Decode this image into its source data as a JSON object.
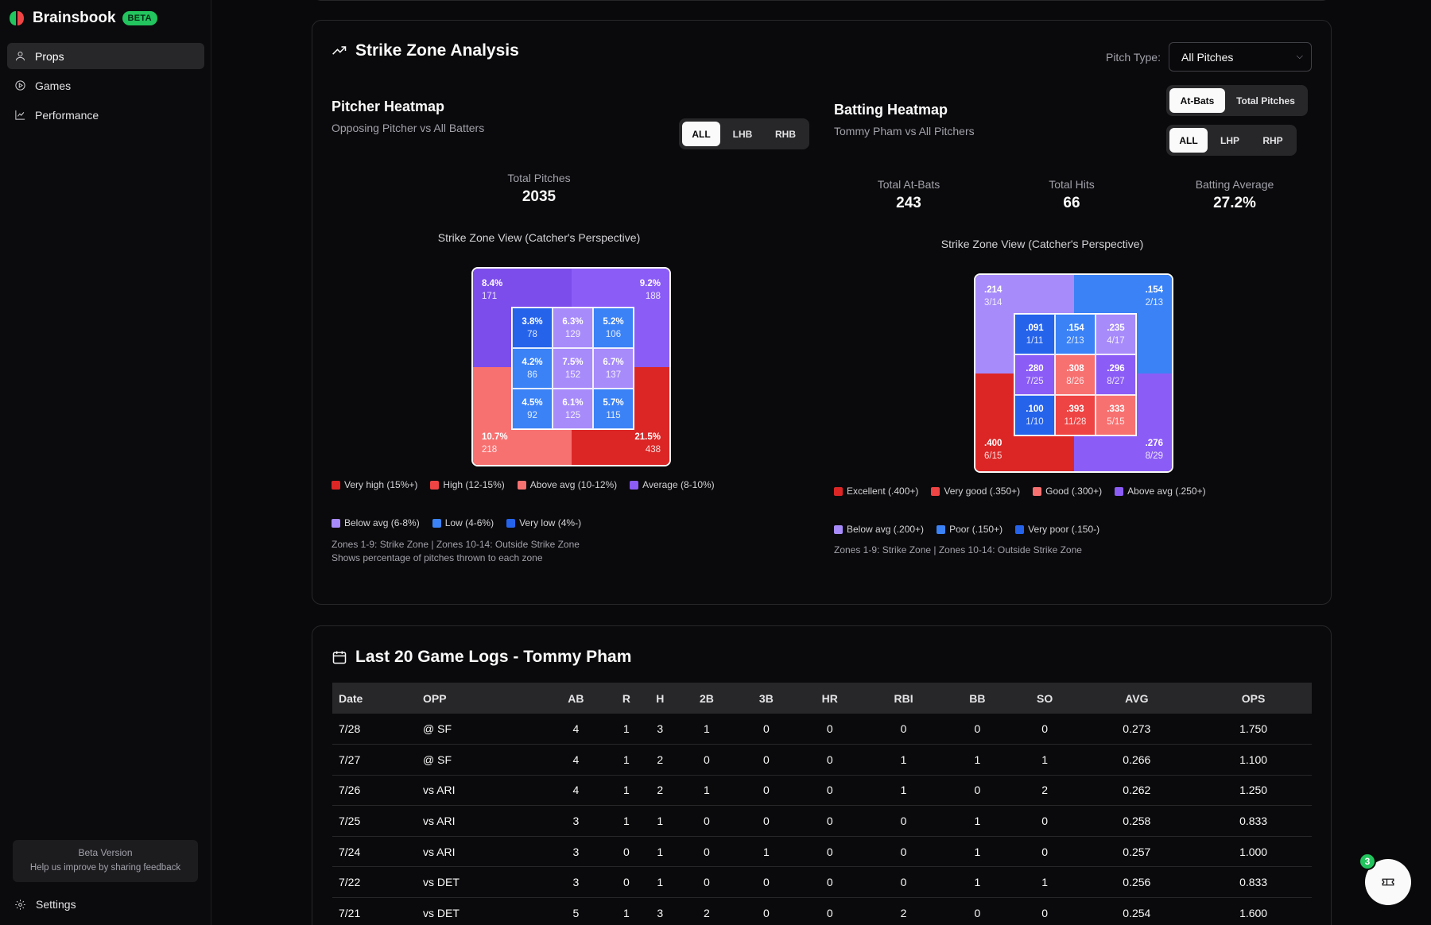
{
  "app": {
    "name": "Brainsbook",
    "badge": "BETA"
  },
  "sidebar": {
    "items": [
      {
        "label": "Props",
        "icon": "user-icon",
        "active": true
      },
      {
        "label": "Games",
        "icon": "play-circle-icon",
        "active": false
      },
      {
        "label": "Performance",
        "icon": "line-chart-icon",
        "active": false
      }
    ],
    "beta_title": "Beta Version",
    "beta_text": "Help us improve by sharing feedback",
    "settings_label": "Settings"
  },
  "strike_zone": {
    "title": "Strike Zone Analysis",
    "pitch_type_label": "Pitch Type:",
    "pitch_type_value": "All Pitches",
    "pitcher": {
      "title": "Pitcher Heatmap",
      "subtitle": "Opposing Pitcher vs All Batters",
      "filters": [
        "ALL",
        "LHB",
        "RHB"
      ],
      "active_filter": "ALL",
      "stat_label": "Total Pitches",
      "stat_value": "2035",
      "view_title": "Strike Zone View (Catcher's Perspective)",
      "outer": [
        {
          "top": "8.4%",
          "bottom": "171",
          "color": "#7c4dea"
        },
        {
          "top": "9.2%",
          "bottom": "188",
          "color": "#8b5cf6"
        },
        {
          "top": "10.7%",
          "bottom": "218",
          "color": "#f87171"
        },
        {
          "top": "21.5%",
          "bottom": "438",
          "color": "#dc2626"
        }
      ],
      "cells": [
        {
          "top": "3.8%",
          "bottom": "78",
          "color": "#2563eb"
        },
        {
          "top": "6.3%",
          "bottom": "129",
          "color": "#a78bfa"
        },
        {
          "top": "5.2%",
          "bottom": "106",
          "color": "#3b82f6"
        },
        {
          "top": "4.2%",
          "bottom": "86",
          "color": "#3b82f6"
        },
        {
          "top": "7.5%",
          "bottom": "152",
          "color": "#a78bfa"
        },
        {
          "top": "6.7%",
          "bottom": "137",
          "color": "#a78bfa"
        },
        {
          "top": "4.5%",
          "bottom": "92",
          "color": "#3b82f6"
        },
        {
          "top": "6.1%",
          "bottom": "125",
          "color": "#a78bfa"
        },
        {
          "top": "5.7%",
          "bottom": "115",
          "color": "#3b82f6"
        }
      ],
      "legend": [
        {
          "label": "Very high (15%+)",
          "color": "#dc2626"
        },
        {
          "label": "High (12-15%)",
          "color": "#ef4444"
        },
        {
          "label": "Above avg (10-12%)",
          "color": "#f87171"
        },
        {
          "label": "Average (8-10%)",
          "color": "#8b5cf6"
        },
        {
          "label": "Below avg (6-8%)",
          "color": "#a78bfa"
        },
        {
          "label": "Low (4-6%)",
          "color": "#3b82f6"
        },
        {
          "label": "Very low (4%-)",
          "color": "#2563eb"
        }
      ],
      "note_line1": "Zones 1-9: Strike Zone | Zones 10-14: Outside Strike Zone",
      "note_line2": "Shows percentage of pitches thrown to each zone"
    },
    "batting": {
      "title": "Batting Heatmap",
      "subtitle": "Tommy Pham vs All Pitchers",
      "mode_options": [
        "At-Bats",
        "Total Pitches"
      ],
      "active_mode": "At-Bats",
      "filters": [
        "ALL",
        "LHP",
        "RHP"
      ],
      "active_filter": "ALL",
      "stats": [
        {
          "label": "Total At-Bats",
          "value": "243"
        },
        {
          "label": "Total Hits",
          "value": "66"
        },
        {
          "label": "Batting Average",
          "value": "27.2%"
        }
      ],
      "view_title": "Strike Zone View (Catcher's Perspective)",
      "outer": [
        {
          "top": ".214",
          "bottom": "3/14",
          "color": "#a78bfa"
        },
        {
          "top": ".154",
          "bottom": "2/13",
          "color": "#3b82f6"
        },
        {
          "top": ".400",
          "bottom": "6/15",
          "color": "#dc2626"
        },
        {
          "top": ".276",
          "bottom": "8/29",
          "color": "#8b5cf6"
        }
      ],
      "cells": [
        {
          "top": ".091",
          "bottom": "1/11",
          "color": "#2563eb"
        },
        {
          "top": ".154",
          "bottom": "2/13",
          "color": "#3b82f6"
        },
        {
          "top": ".235",
          "bottom": "4/17",
          "color": "#a78bfa"
        },
        {
          "top": ".280",
          "bottom": "7/25",
          "color": "#8b5cf6"
        },
        {
          "top": ".308",
          "bottom": "8/26",
          "color": "#f87171"
        },
        {
          "top": ".296",
          "bottom": "8/27",
          "color": "#8b5cf6"
        },
        {
          "top": ".100",
          "bottom": "1/10",
          "color": "#2563eb"
        },
        {
          "top": ".393",
          "bottom": "11/28",
          "color": "#ef4444"
        },
        {
          "top": ".333",
          "bottom": "5/15",
          "color": "#f87171"
        }
      ],
      "legend": [
        {
          "label": "Excellent (.400+)",
          "color": "#dc2626"
        },
        {
          "label": "Very good (.350+)",
          "color": "#ef4444"
        },
        {
          "label": "Good (.300+)",
          "color": "#f87171"
        },
        {
          "label": "Above avg (.250+)",
          "color": "#8b5cf6"
        },
        {
          "label": "Below avg (.200+)",
          "color": "#a78bfa"
        },
        {
          "label": "Poor (.150+)",
          "color": "#3b82f6"
        },
        {
          "label": "Very poor (.150-)",
          "color": "#2563eb"
        }
      ],
      "note_line1": "Zones 1-9: Strike Zone | Zones 10-14: Outside Strike Zone"
    }
  },
  "game_logs": {
    "title": "Last 20 Game Logs - Tommy Pham",
    "columns": [
      "Date",
      "OPP",
      "AB",
      "R",
      "H",
      "2B",
      "3B",
      "HR",
      "RBI",
      "BB",
      "SO",
      "AVG",
      "OPS"
    ],
    "rows": [
      [
        "7/28",
        "@ SF",
        "4",
        "1",
        "3",
        "1",
        "0",
        "0",
        "0",
        "0",
        "0",
        "0.273",
        "1.750"
      ],
      [
        "7/27",
        "@ SF",
        "4",
        "1",
        "2",
        "0",
        "0",
        "0",
        "1",
        "1",
        "1",
        "0.266",
        "1.100"
      ],
      [
        "7/26",
        "vs ARI",
        "4",
        "1",
        "2",
        "1",
        "0",
        "0",
        "1",
        "0",
        "2",
        "0.262",
        "1.250"
      ],
      [
        "7/25",
        "vs ARI",
        "3",
        "1",
        "1",
        "0",
        "0",
        "0",
        "0",
        "1",
        "0",
        "0.258",
        "0.833"
      ],
      [
        "7/24",
        "vs ARI",
        "3",
        "0",
        "1",
        "0",
        "1",
        "0",
        "0",
        "1",
        "0",
        "0.257",
        "1.000"
      ],
      [
        "7/22",
        "vs DET",
        "3",
        "0",
        "1",
        "0",
        "0",
        "0",
        "0",
        "1",
        "1",
        "0.256",
        "0.833"
      ],
      [
        "7/21",
        "vs DET",
        "5",
        "1",
        "3",
        "2",
        "0",
        "0",
        "2",
        "0",
        "0",
        "0.254",
        "1.600"
      ]
    ]
  },
  "fab": {
    "badge": "3",
    "icon": "ticket-icon"
  }
}
